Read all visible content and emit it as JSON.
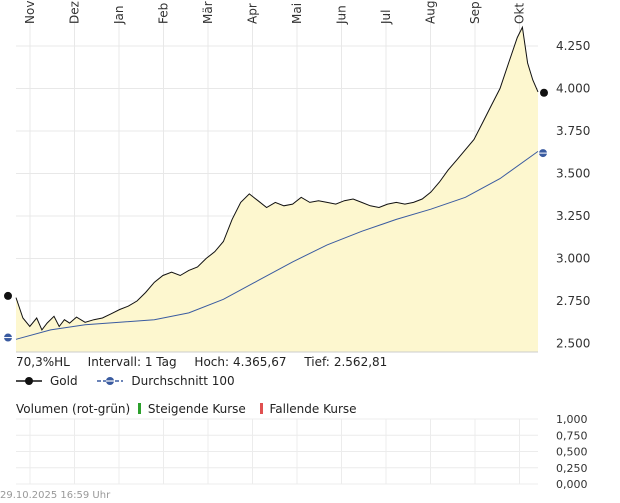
{
  "chart_data": {
    "type": "area",
    "months": [
      "Nov",
      "Dez",
      "Jan",
      "Feb",
      "Mär",
      "Apr",
      "Mai",
      "Jun",
      "Jul",
      "Aug",
      "Sep",
      "Okt"
    ],
    "ylim": [
      2450,
      4450
    ],
    "y_ticks": [
      "2.500",
      "2.750",
      "3.000",
      "3.250",
      "3.500",
      "3.750",
      "4.000",
      "4.250"
    ],
    "y_tick_values": [
      2500,
      2750,
      3000,
      3250,
      3500,
      3750,
      4000,
      4250
    ],
    "series": [
      {
        "name": "Gold",
        "color": "#111111",
        "fill": "#fdf7cf",
        "points": [
          [
            0,
            2770
          ],
          [
            4,
            2650
          ],
          [
            8,
            2600
          ],
          [
            12,
            2650
          ],
          [
            15,
            2580
          ],
          [
            18,
            2620
          ],
          [
            22,
            2660
          ],
          [
            25,
            2600
          ],
          [
            28,
            2640
          ],
          [
            31,
            2620
          ],
          [
            35,
            2655
          ],
          [
            40,
            2625
          ],
          [
            45,
            2640
          ],
          [
            50,
            2650
          ],
          [
            55,
            2675
          ],
          [
            60,
            2700
          ],
          [
            65,
            2720
          ],
          [
            70,
            2750
          ],
          [
            75,
            2800
          ],
          [
            80,
            2860
          ],
          [
            85,
            2900
          ],
          [
            90,
            2920
          ],
          [
            95,
            2900
          ],
          [
            100,
            2930
          ],
          [
            105,
            2950
          ],
          [
            110,
            3000
          ],
          [
            115,
            3040
          ],
          [
            120,
            3100
          ],
          [
            125,
            3230
          ],
          [
            130,
            3330
          ],
          [
            135,
            3380
          ],
          [
            140,
            3340
          ],
          [
            145,
            3300
          ],
          [
            150,
            3330
          ],
          [
            155,
            3310
          ],
          [
            160,
            3320
          ],
          [
            165,
            3360
          ],
          [
            170,
            3330
          ],
          [
            175,
            3340
          ],
          [
            180,
            3330
          ],
          [
            185,
            3320
          ],
          [
            190,
            3340
          ],
          [
            195,
            3350
          ],
          [
            200,
            3330
          ],
          [
            205,
            3310
          ],
          [
            210,
            3300
          ],
          [
            215,
            3320
          ],
          [
            220,
            3330
          ],
          [
            225,
            3320
          ],
          [
            230,
            3330
          ],
          [
            235,
            3350
          ],
          [
            240,
            3390
          ],
          [
            245,
            3450
          ],
          [
            250,
            3520
          ],
          [
            255,
            3580
          ],
          [
            260,
            3640
          ],
          [
            265,
            3700
          ],
          [
            270,
            3800
          ],
          [
            275,
            3900
          ],
          [
            280,
            4000
          ],
          [
            285,
            4150
          ],
          [
            290,
            4300
          ],
          [
            293,
            4360
          ],
          [
            296,
            4150
          ],
          [
            299,
            4050
          ],
          [
            302,
            3980
          ]
        ],
        "last_value": 3975
      },
      {
        "name": "Durchschnitt 100",
        "color": "#3a5ba0",
        "points": [
          [
            0,
            2525
          ],
          [
            20,
            2580
          ],
          [
            40,
            2610
          ],
          [
            60,
            2625
          ],
          [
            80,
            2640
          ],
          [
            100,
            2680
          ],
          [
            120,
            2760
          ],
          [
            140,
            2870
          ],
          [
            160,
            2980
          ],
          [
            180,
            3080
          ],
          [
            200,
            3160
          ],
          [
            220,
            3230
          ],
          [
            240,
            3290
          ],
          [
            260,
            3360
          ],
          [
            280,
            3470
          ],
          [
            302,
            3630
          ]
        ],
        "last_value": 3620
      }
    ],
    "start_marker_value": 2780,
    "start_avg_marker_value": 2535
  },
  "stats": {
    "hl": "70,3%HL",
    "intervall": "Intervall: 1 Tag",
    "hoch_label": "Hoch:",
    "hoch": "4.365,67",
    "tief_label": "Tief:",
    "tief": "2.562,81"
  },
  "legend": {
    "gold": "Gold",
    "durchschnitt": "Durchschnitt 100"
  },
  "volume": {
    "header": "Volumen (rot-grün)",
    "steigende": "Steigende Kurse",
    "fallende": "Fallende Kurse",
    "rising_color": "#2ca02c",
    "falling_color": "#e05050",
    "y_ticks": [
      "1,000",
      "0,750",
      "0,500",
      "0,250",
      "0,000"
    ],
    "y_tick_values": [
      1.0,
      0.75,
      0.5,
      0.25,
      0.0
    ]
  },
  "footer": "29.10.2025 16:59 Uhr"
}
